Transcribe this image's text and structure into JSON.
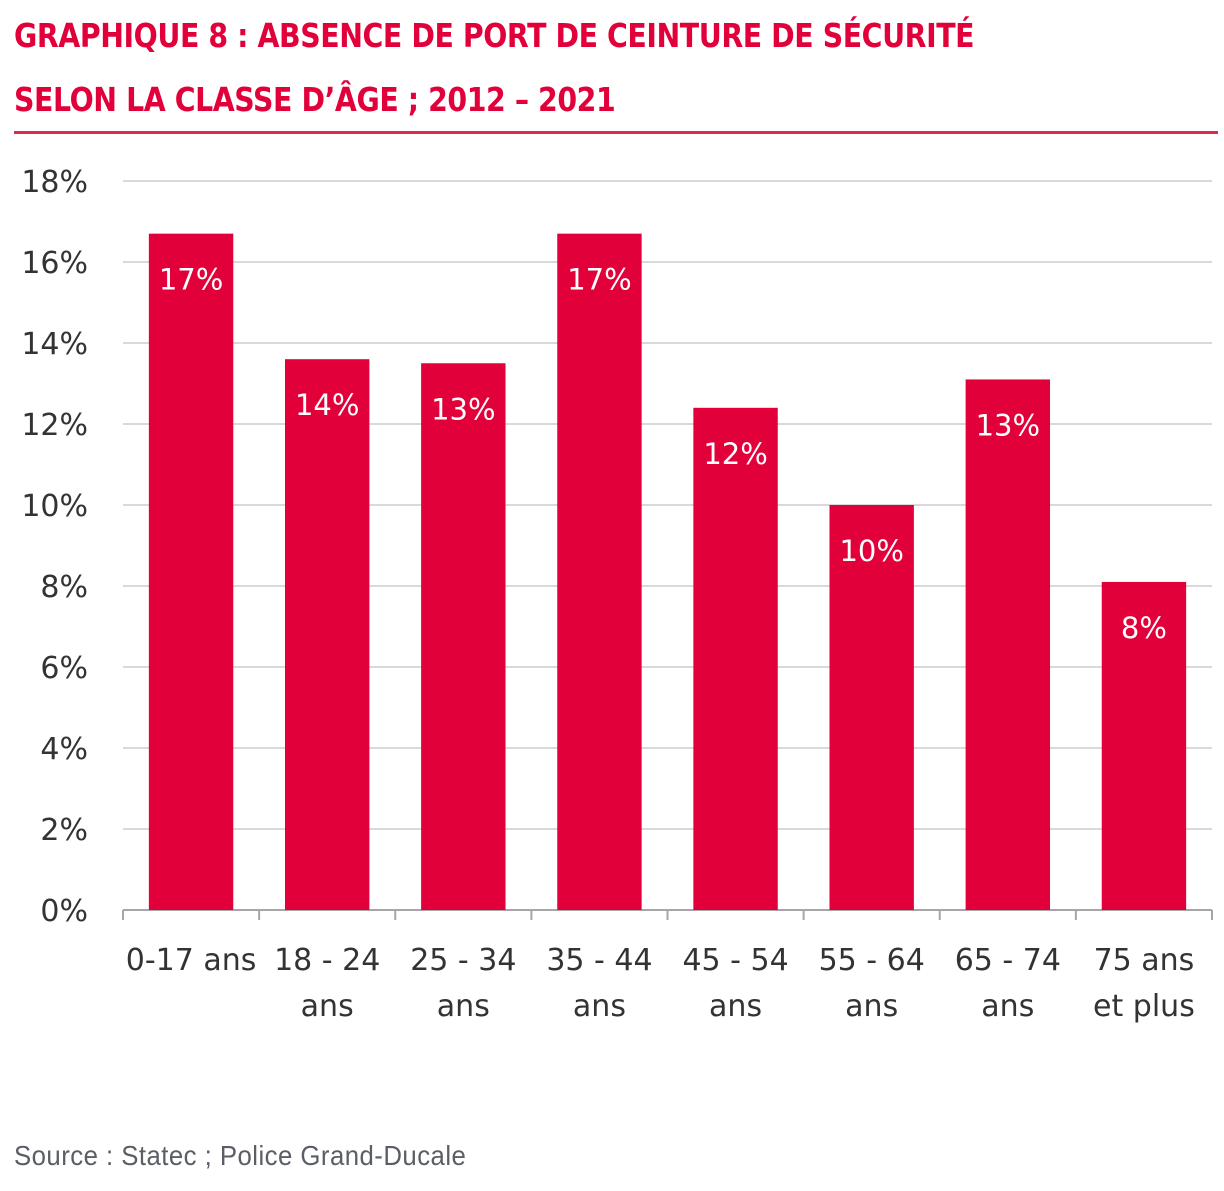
{
  "header": {
    "title_line1": "GRAPHIQUE 8 : ABSENCE DE PORT DE CEINTURE DE SÉCURITÉ",
    "title_line2": "SELON LA CLASSE D’ÂGE ; 2012 – 2021"
  },
  "source": "Source : Statec ; Police Grand-Ducale",
  "colors": {
    "bar": "#e2003b",
    "title": "#e2003b",
    "grid": "#d9d9d9",
    "axis": "#a6a6a6",
    "text": "#333333"
  },
  "chart_data": {
    "type": "bar",
    "title": "GRAPHIQUE 8 : ABSENCE DE PORT DE CEINTURE DE SÉCURITÉ SELON LA CLASSE D’ÂGE ; 2012 – 2021",
    "xlabel": "",
    "ylabel": "",
    "ylim": [
      0,
      18
    ],
    "yticks": [
      0,
      2,
      4,
      6,
      8,
      10,
      12,
      14,
      16,
      18
    ],
    "ytick_labels": [
      "0%",
      "2%",
      "4%",
      "6%",
      "8%",
      "10%",
      "12%",
      "14%",
      "16%",
      "18%"
    ],
    "grid": true,
    "legend": "none",
    "categories": [
      [
        "0-17 ans"
      ],
      [
        "18 - 24",
        "ans"
      ],
      [
        "25 - 34",
        "ans"
      ],
      [
        "35 - 44",
        "ans"
      ],
      [
        "45 - 54",
        "ans"
      ],
      [
        "55 - 64",
        "ans"
      ],
      [
        "65 - 74",
        "ans"
      ],
      [
        "75 ans",
        "et plus"
      ]
    ],
    "values": [
      16.7,
      13.6,
      13.5,
      16.7,
      12.4,
      10.0,
      13.1,
      8.1
    ],
    "data_labels": [
      "17%",
      "14%",
      "13%",
      "17%",
      "12%",
      "10%",
      "13%",
      "8%"
    ]
  }
}
